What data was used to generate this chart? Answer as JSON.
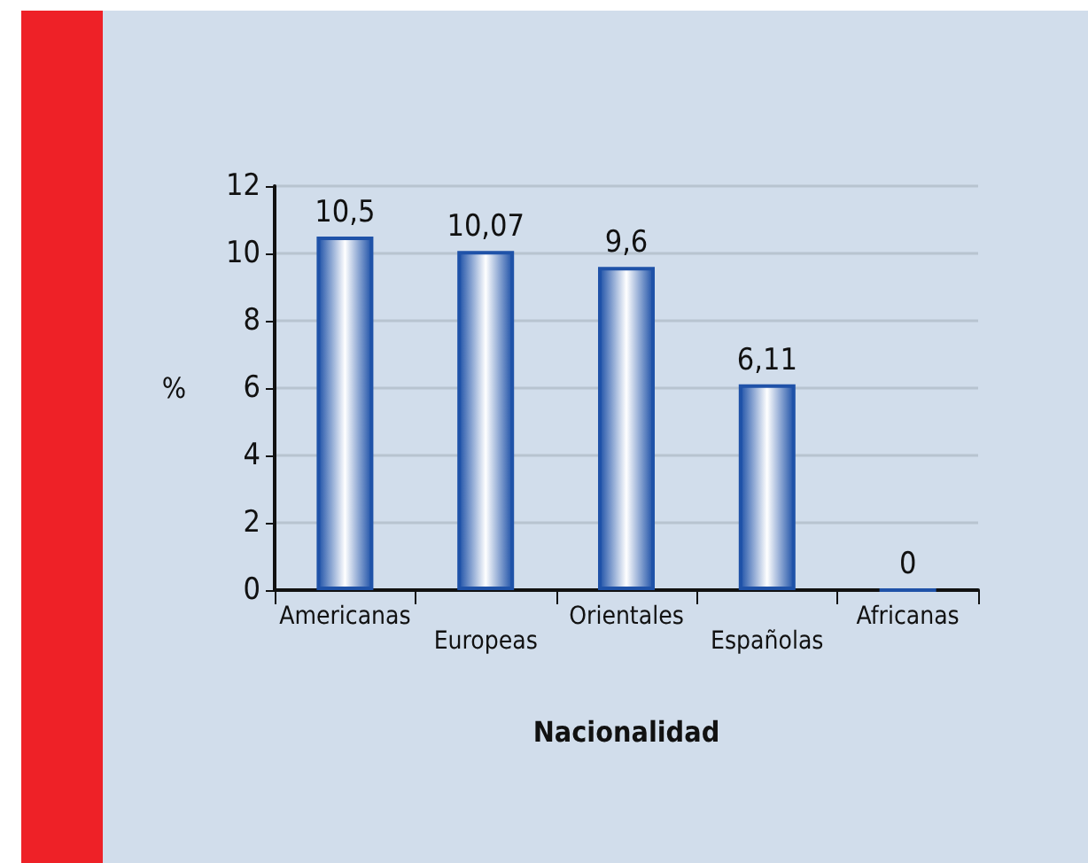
{
  "chart_data": {
    "type": "bar",
    "xlabel": "Nacionalidad",
    "ylabel": "%",
    "categories": [
      "Americanas",
      "Europeas",
      "Orientales",
      "Españolas",
      "Africanas"
    ],
    "values": [
      10.5,
      10.07,
      9.6,
      6.11,
      0
    ],
    "value_labels": [
      "10,5",
      "10,07",
      "9,6",
      "6,11",
      "0"
    ],
    "color": "#1f52a8",
    "ylim": [
      0,
      12
    ],
    "yticks": [
      0,
      2,
      4,
      6,
      8,
      10,
      12
    ],
    "grid": "y"
  }
}
